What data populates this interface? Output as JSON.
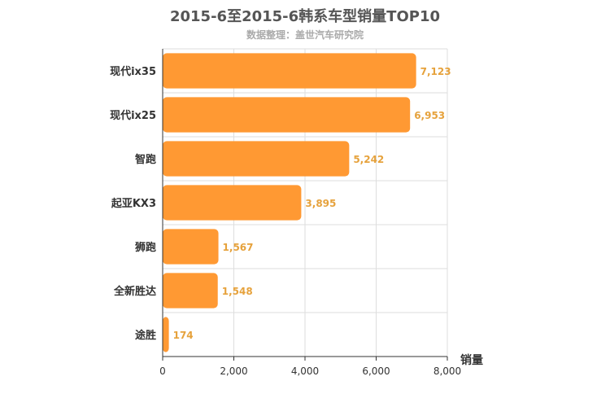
{
  "chart_data": {
    "type": "bar",
    "orientation": "horizontal",
    "title": "2015-6至2015-6韩系车型销量TOP10",
    "subtitle": "数据整理：盖世汽车研究院",
    "xlabel": "销量",
    "ylabel": "",
    "xlim": [
      0,
      8000
    ],
    "x_ticks": [
      "0",
      "2,000",
      "4,000",
      "6,000",
      "8,000"
    ],
    "categories": [
      "现代ix35",
      "现代ix25",
      "智跑",
      "起亚KX3",
      "狮跑",
      "全新胜达",
      "途胜"
    ],
    "values": [
      7123,
      6953,
      5242,
      3895,
      1567,
      1548,
      174
    ],
    "value_labels": [
      "7,123",
      "6,953",
      "5,242",
      "3,895",
      "1,567",
      "1,548",
      "174"
    ],
    "grid": true,
    "bar_color": "#ff9933",
    "label_color": "#e6a23c"
  }
}
